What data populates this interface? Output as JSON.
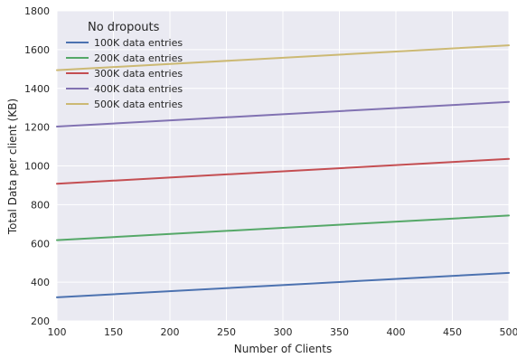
{
  "chart_data": {
    "type": "line",
    "title": "",
    "xlabel": "Number of Clients",
    "ylabel": "Total Data per client (KB)",
    "xlim": [
      100,
      500
    ],
    "ylim": [
      200,
      1800
    ],
    "xticks": [
      100,
      150,
      200,
      250,
      300,
      350,
      400,
      450,
      500
    ],
    "yticks": [
      200,
      400,
      600,
      800,
      1000,
      1200,
      1400,
      1600,
      1800
    ],
    "grid": true,
    "legend": {
      "title": "No dropouts",
      "placement": "top-left"
    },
    "x": [
      100,
      500
    ],
    "series": [
      {
        "name": "100K data entries",
        "color": "#4c72b0",
        "values": [
          322,
          448
        ]
      },
      {
        "name": "200K data entries",
        "color": "#55a868",
        "values": [
          617,
          744
        ]
      },
      {
        "name": "300K data entries",
        "color": "#c44e52",
        "values": [
          908,
          1036
        ]
      },
      {
        "name": "400K data entries",
        "color": "#8172b2",
        "values": [
          1203,
          1330
        ]
      },
      {
        "name": "500K data entries",
        "color": "#ccb974",
        "values": [
          1494,
          1622
        ]
      }
    ],
    "colors": {
      "plot_background": "#eaeaf2",
      "grid": "#ffffff"
    }
  }
}
